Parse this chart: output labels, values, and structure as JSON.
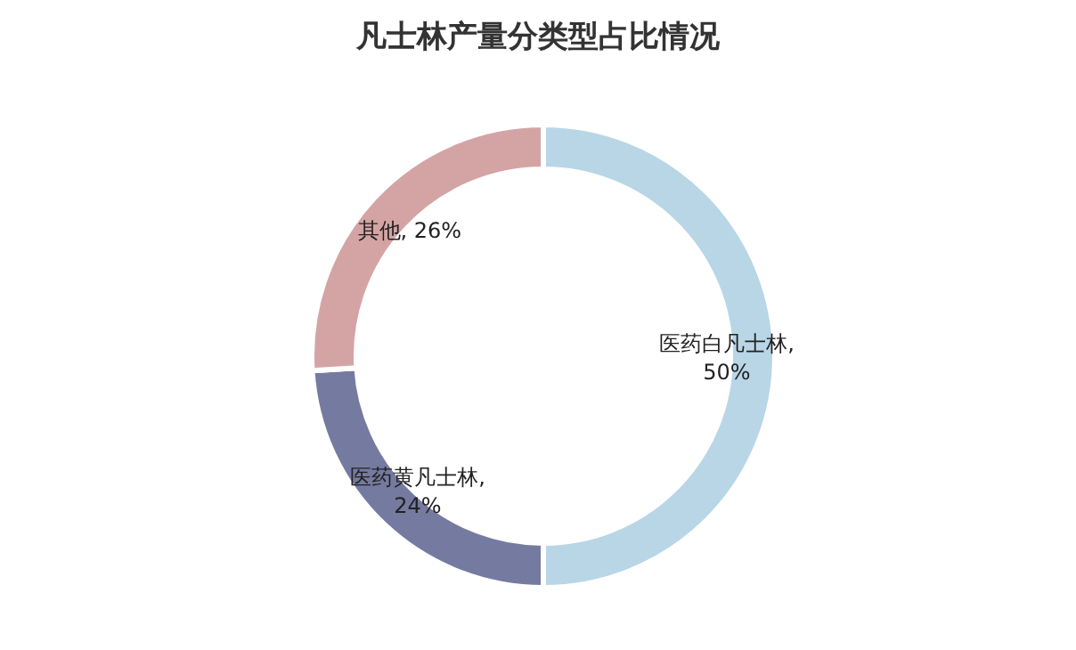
{
  "chart_data": {
    "type": "donut",
    "title": "凡士林产量分类型占比情况",
    "categories": [
      "医药白凡士林",
      "医药黄凡士林",
      "其他"
    ],
    "values": [
      50,
      24,
      26
    ],
    "colors": [
      "#b8d6e6",
      "#757ba0",
      "#d4a4a4"
    ],
    "value_labels": [
      ", 50%",
      ", 24%",
      ", 26%"
    ]
  }
}
